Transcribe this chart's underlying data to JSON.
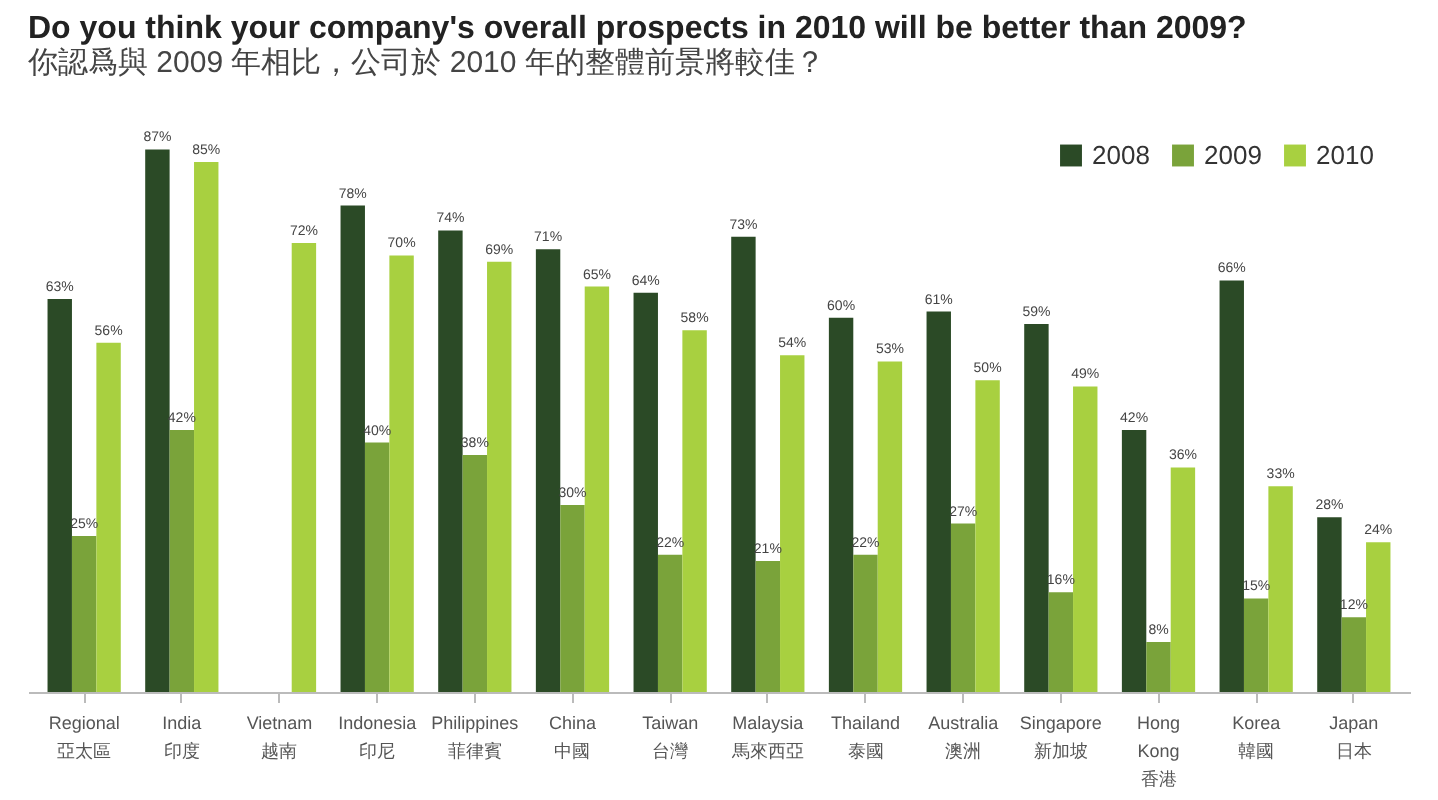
{
  "chart_data": {
    "type": "bar",
    "title": "Do you think your company's overall prospects in 2010 will be better than 2009?",
    "subtitle": "你認爲與 2009 年相比，公司於 2010 年的整體前景將較佳？",
    "categories": [
      "Regional\n亞太區",
      "India\n印度",
      "Vietnam\n越南",
      "Indonesia\n印尼",
      "Philippines\n菲律賓",
      "China\n中國",
      "Taiwan\n台灣",
      "Malaysia\n馬來西亞",
      "Thailand\n泰國",
      "Australia\n澳洲",
      "Singapore\n新加坡",
      "Hong\nKong\n香港",
      "Korea\n韓國",
      "Japan\n日本"
    ],
    "series": [
      {
        "name": "2008",
        "color": "#2b4a26",
        "values": [
          63,
          87,
          null,
          78,
          74,
          71,
          64,
          73,
          60,
          61,
          59,
          42,
          66,
          28
        ],
        "value_labels": [
          "63%",
          "87%",
          null,
          "78%",
          "74%",
          "71%",
          "64%",
          "73%",
          "60%",
          "61%",
          "59%",
          "42%",
          "66%",
          "28%"
        ]
      },
      {
        "name": "2009",
        "color": "#7aa33a",
        "values": [
          25,
          42,
          null,
          40,
          38,
          30,
          22,
          21,
          22,
          27,
          16,
          8,
          15,
          12
        ],
        "value_labels": [
          "25%",
          "42%",
          null,
          "40%",
          "38%",
          "30%",
          "22%",
          "21%",
          "22%",
          "27%",
          "16%",
          "8%",
          "15%",
          "12%"
        ]
      },
      {
        "name": "2010",
        "color": "#a8d040",
        "values": [
          56,
          85,
          72,
          70,
          69,
          65,
          58,
          54,
          53,
          50,
          49,
          36,
          33,
          24
        ],
        "value_labels": [
          "56%",
          "85%",
          "72%",
          "70%",
          "69%",
          "65%",
          "58%",
          "54%",
          "53%",
          "50%",
          "49%",
          "36%",
          "33%",
          "24%"
        ]
      }
    ],
    "legend": "top right",
    "grid": false
  }
}
